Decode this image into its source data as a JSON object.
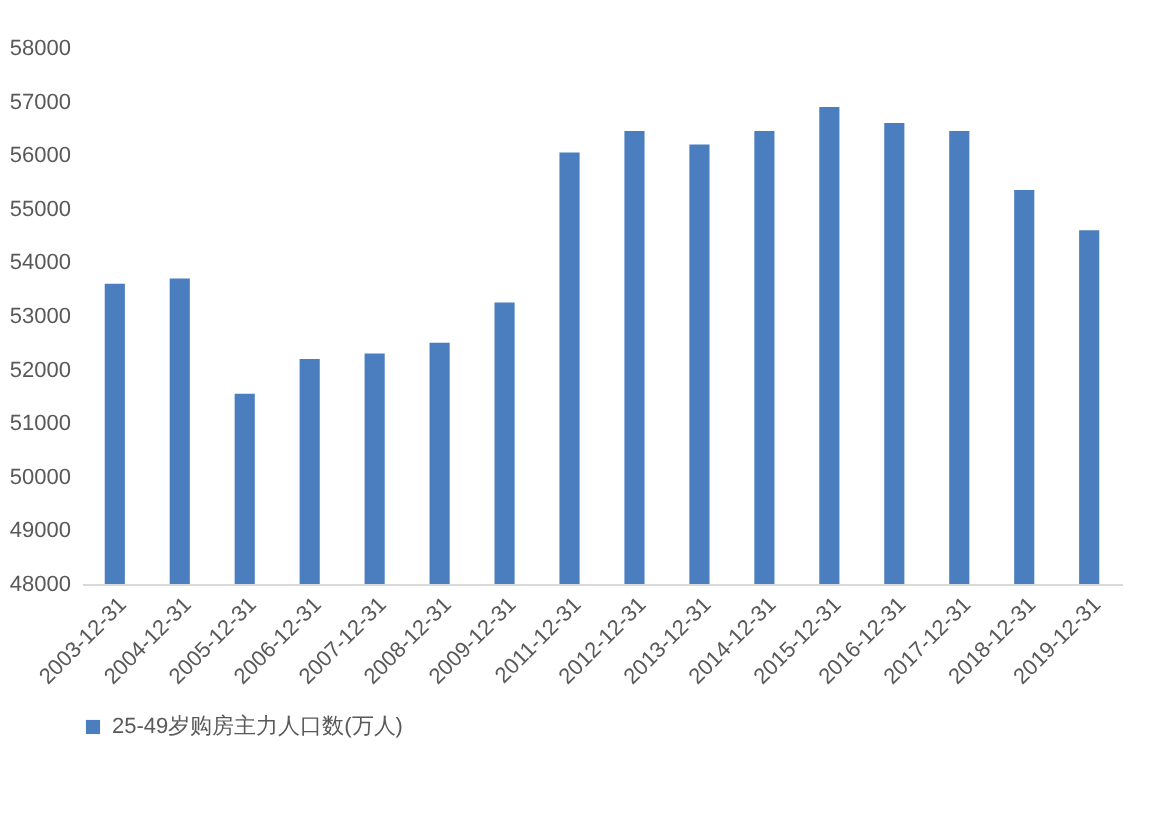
{
  "chart_data": {
    "type": "bar",
    "categories": [
      "2003-12-31",
      "2004-12-31",
      "2005-12-31",
      "2006-12-31",
      "2007-12-31",
      "2008-12-31",
      "2009-12-31",
      "2011-12-31",
      "2012-12-31",
      "2013-12-31",
      "2014-12-31",
      "2015-12-31",
      "2016-12-31",
      "2017-12-31",
      "2018-12-31",
      "2019-12-31"
    ],
    "series": [
      {
        "name": "25-49岁购房主力人口数(万人)",
        "color": "#4a7ebf",
        "values": [
          53600,
          53700,
          51550,
          52200,
          52300,
          52500,
          53250,
          56050,
          56450,
          56200,
          56450,
          56900,
          56600,
          56450,
          55350,
          54600
        ]
      }
    ],
    "ylim": [
      48000,
      58000
    ],
    "yticks": [
      48000,
      49000,
      50000,
      51000,
      52000,
      53000,
      54000,
      55000,
      56000,
      57000,
      58000
    ],
    "grid": false,
    "legend": "bottom"
  }
}
